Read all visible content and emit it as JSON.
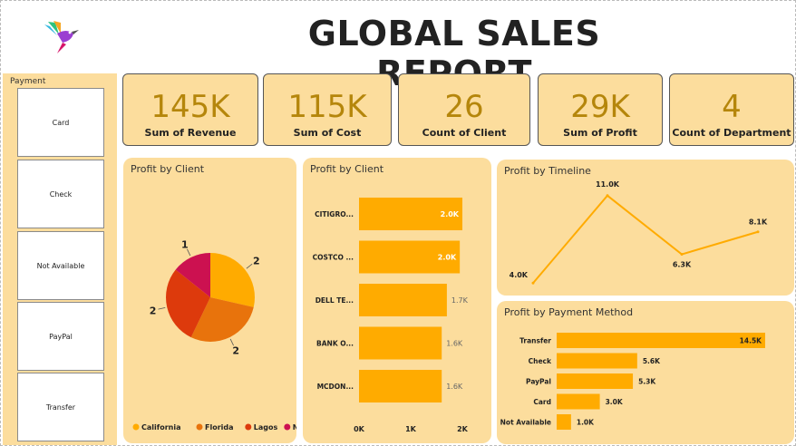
{
  "header": {
    "title": "GLOBAL SALES REPORT",
    "logo_icon": "hummingbird-icon"
  },
  "slicer": {
    "title": "Payment",
    "items": [
      "Card",
      "Check",
      "Not Available",
      "PayPal",
      "Transfer"
    ]
  },
  "kpis": [
    {
      "value": "145K",
      "label": "Sum of Revenue"
    },
    {
      "value": "115K",
      "label": "Sum of Cost"
    },
    {
      "value": "26",
      "label": "Count of Client"
    },
    {
      "value": "29K",
      "label": "Sum of Profit"
    },
    {
      "value": "4",
      "label": "Count of Department"
    }
  ],
  "colors": {
    "panel_bg": "#fcdd9d",
    "bar": "#ffab00",
    "kpi_value": "#b5860b",
    "pie": [
      "#ffab00",
      "#e8730c",
      "#dd3a0c",
      "#cc1150"
    ]
  },
  "chart_data": [
    {
      "title": "Profit by Client",
      "type": "pie",
      "labels": [
        "California",
        "Florida",
        "Lagos",
        "New York"
      ],
      "values": [
        2,
        2,
        2,
        1
      ],
      "data_labels": [
        "2",
        "2",
        "2",
        "1"
      ],
      "legend_position": "bottom"
    },
    {
      "title": "Profit by Client",
      "type": "bar",
      "orientation": "horizontal",
      "categories": [
        "CITIGRO...",
        "COSTCO ...",
        "DELL TE...",
        "BANK O...",
        "MCDON..."
      ],
      "values": [
        2000,
        1950,
        1700,
        1600,
        1600
      ],
      "data_labels": [
        "2.0K",
        "2.0K",
        "1.7K",
        "1.6K",
        "1.6K"
      ],
      "xlim": [
        0,
        2000
      ],
      "x_ticks": [
        "0K",
        "1K",
        "2K"
      ]
    },
    {
      "title": "Profit by Timeline",
      "type": "line",
      "values": [
        4000,
        11000,
        6300,
        8100
      ],
      "data_labels": [
        "4.0K",
        "11.0K",
        "6.3K",
        "8.1K"
      ]
    },
    {
      "title": "Profit by Payment Method",
      "type": "bar",
      "orientation": "horizontal",
      "categories": [
        "Transfer",
        "Check",
        "PayPal",
        "Card",
        "Not Available"
      ],
      "values": [
        14500,
        5600,
        5300,
        3000,
        1000
      ],
      "data_labels": [
        "14.5K",
        "5.6K",
        "5.3K",
        "3.0K",
        "1.0K"
      ]
    }
  ]
}
